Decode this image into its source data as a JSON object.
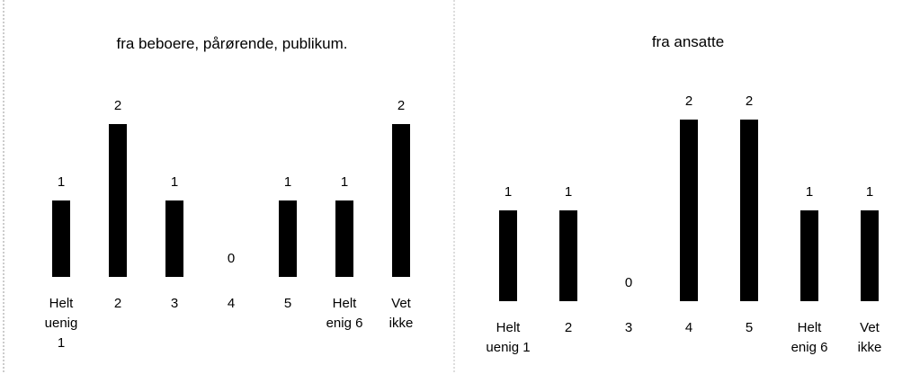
{
  "chart_data": [
    {
      "type": "bar",
      "title": "fra beboere, pårørende, publikum.",
      "categories": [
        "Helt\nuenig\n1",
        "2",
        "3",
        "4",
        "5",
        "Helt\nenig 6",
        "Vet\nikke"
      ],
      "values": [
        1,
        2,
        1,
        0,
        1,
        1,
        2
      ],
      "color": "#000000"
    },
    {
      "type": "bar",
      "title": "fra ansatte",
      "categories": [
        "Helt\nuenig 1",
        "2",
        "3",
        "4",
        "5",
        "Helt\nenig 6",
        "Vet\nikke"
      ],
      "values": [
        1,
        1,
        0,
        2,
        2,
        1,
        1
      ],
      "color": "#000000"
    }
  ]
}
